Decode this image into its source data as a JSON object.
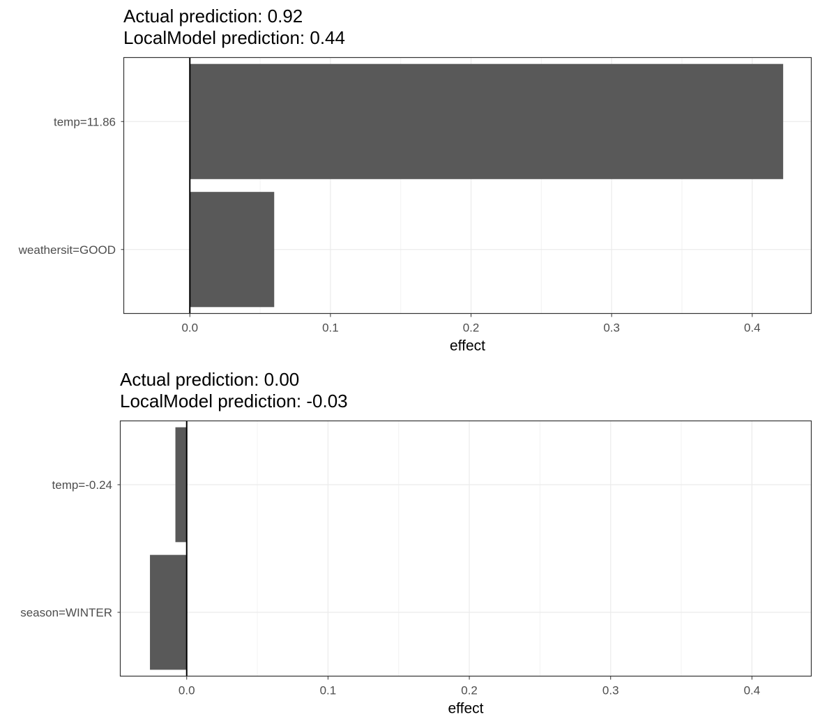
{
  "charts": [
    {
      "title_line1": "Actual prediction: 0.92",
      "title_line2": "LocalModel prediction: 0.44",
      "chart_data": {
        "type": "bar",
        "orientation": "horizontal",
        "categories": [
          "temp=11.86",
          "weathersit=GOOD"
        ],
        "values": [
          0.422,
          0.06
        ],
        "xlabel": "effect",
        "ylabel": "",
        "xlim": [
          -0.047,
          0.442
        ],
        "xticks": [
          0.0,
          0.1,
          0.2,
          0.3,
          0.4
        ],
        "xtick_labels": [
          "0.0",
          "0.1",
          "0.2",
          "0.3",
          "0.4"
        ],
        "grid": true,
        "bar_color": "#595959"
      }
    },
    {
      "title_line1": "Actual prediction: 0.00",
      "title_line2": "LocalModel prediction: -0.03",
      "chart_data": {
        "type": "bar",
        "orientation": "horizontal",
        "categories": [
          "temp=-0.24",
          "season=WINTER"
        ],
        "values": [
          -0.008,
          -0.026
        ],
        "xlabel": "effect",
        "ylabel": "",
        "xlim": [
          -0.047,
          0.442
        ],
        "xticks": [
          0.0,
          0.1,
          0.2,
          0.3,
          0.4
        ],
        "xtick_labels": [
          "0.0",
          "0.1",
          "0.2",
          "0.3",
          "0.4"
        ],
        "grid": true,
        "bar_color": "#595959"
      }
    }
  ]
}
